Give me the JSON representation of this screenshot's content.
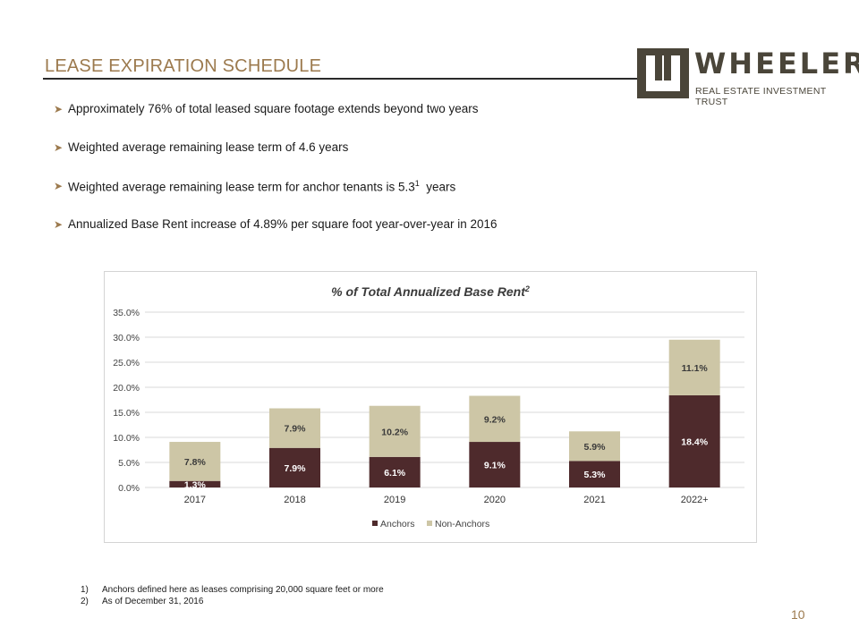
{
  "slide": {
    "title": "LEASE EXPIRATION SCHEDULE",
    "page_number": "10"
  },
  "logo": {
    "name": "WHEELER",
    "tagline": "REAL ESTATE INVESTMENT TRUST"
  },
  "bullets": [
    {
      "text": "Approximately 76% of total leased square footage extends beyond two years",
      "sup": "",
      "after": ""
    },
    {
      "text": "Weighted average remaining lease term of 4.6 years",
      "sup": "",
      "after": ""
    },
    {
      "text": "Weighted average remaining lease term for anchor tenants is 5.3",
      "sup": "1",
      "after": "  years"
    },
    {
      "text": "Annualized Base Rent increase of 4.89% per square foot year-over-year in 2016",
      "sup": "",
      "after": ""
    }
  ],
  "footnotes": [
    {
      "num": "1)",
      "text": "Anchors defined here as leases comprising 20,000 square feet or more"
    },
    {
      "num": "2)",
      "text": "As of December 31, 2016"
    }
  ],
  "colors": {
    "anchors": "#4e2a2c",
    "non_anchors": "#cdc6a6",
    "accent": "#9c7a4e"
  },
  "chart_data": {
    "type": "bar",
    "stacked": true,
    "title": "% of Total Annualized Base Rent",
    "title_sup": "2",
    "categories": [
      "2017",
      "2018",
      "2019",
      "2020",
      "2021",
      "2022+"
    ],
    "series": [
      {
        "name": "Anchors",
        "values": [
          1.3,
          7.9,
          6.1,
          9.1,
          5.3,
          18.4
        ],
        "labels": [
          "1.3%",
          "7.9%",
          "6.1%",
          "9.1%",
          "5.3%",
          "18.4%"
        ]
      },
      {
        "name": "Non-Anchors",
        "values": [
          7.8,
          7.9,
          10.2,
          9.2,
          5.9,
          11.1
        ],
        "labels": [
          "7.8%",
          "7.9%",
          "10.2%",
          "9.2%",
          "5.9%",
          "11.1%"
        ]
      }
    ],
    "ylim": [
      0,
      35
    ],
    "yticks": [
      0,
      5,
      10,
      15,
      20,
      25,
      30,
      35
    ],
    "ytick_labels": [
      "0.0%",
      "5.0%",
      "10.0%",
      "15.0%",
      "20.0%",
      "25.0%",
      "30.0%",
      "35.0%"
    ],
    "grid": true,
    "legend": "bottom"
  }
}
